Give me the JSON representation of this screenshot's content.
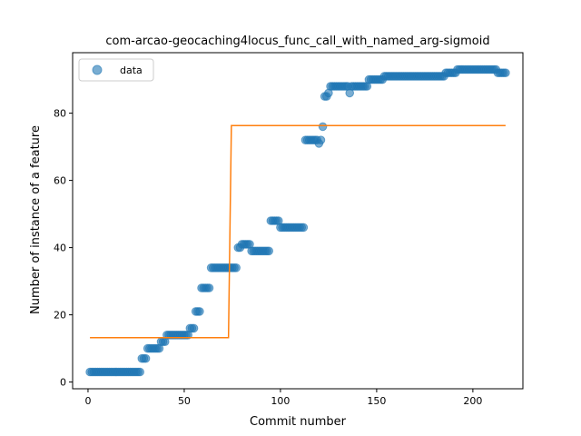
{
  "chart_data": {
    "type": "scatter",
    "title": "com-arcao-geocaching4locus_func_call_with_named_arg-sigmoid",
    "xlabel": "Commit number",
    "ylabel": "Number of instance of a feature",
    "xlim": [
      -8,
      226
    ],
    "ylim": [
      -2,
      98
    ],
    "xticks": [
      0,
      50,
      100,
      150,
      200
    ],
    "yticks": [
      0,
      20,
      40,
      60,
      80
    ],
    "grid": false,
    "legend": {
      "position": "top-left",
      "entries": [
        "data"
      ]
    },
    "colors": {
      "data": "#1f77b4",
      "fit": "#ff7f0e"
    },
    "series": [
      {
        "name": "data",
        "kind": "points",
        "points": [
          [
            1,
            3
          ],
          [
            2,
            3
          ],
          [
            3,
            3
          ],
          [
            4,
            3
          ],
          [
            5,
            3
          ],
          [
            6,
            3
          ],
          [
            7,
            3
          ],
          [
            8,
            3
          ],
          [
            9,
            3
          ],
          [
            10,
            3
          ],
          [
            11,
            3
          ],
          [
            12,
            3
          ],
          [
            13,
            3
          ],
          [
            14,
            3
          ],
          [
            15,
            3
          ],
          [
            16,
            3
          ],
          [
            17,
            3
          ],
          [
            18,
            3
          ],
          [
            19,
            3
          ],
          [
            20,
            3
          ],
          [
            21,
            3
          ],
          [
            22,
            3
          ],
          [
            23,
            3
          ],
          [
            24,
            3
          ],
          [
            25,
            3
          ],
          [
            26,
            3
          ],
          [
            27,
            3
          ],
          [
            28,
            7
          ],
          [
            29,
            7
          ],
          [
            30,
            7
          ],
          [
            31,
            10
          ],
          [
            32,
            10
          ],
          [
            33,
            10
          ],
          [
            34,
            10
          ],
          [
            35,
            10
          ],
          [
            36,
            10
          ],
          [
            37,
            10
          ],
          [
            38,
            12
          ],
          [
            39,
            12
          ],
          [
            40,
            12
          ],
          [
            41,
            14
          ],
          [
            42,
            14
          ],
          [
            43,
            14
          ],
          [
            44,
            14
          ],
          [
            45,
            14
          ],
          [
            46,
            14
          ],
          [
            47,
            14
          ],
          [
            48,
            14
          ],
          [
            49,
            14
          ],
          [
            50,
            14
          ],
          [
            51,
            14
          ],
          [
            52,
            14
          ],
          [
            53,
            16
          ],
          [
            54,
            16
          ],
          [
            55,
            16
          ],
          [
            56,
            21
          ],
          [
            57,
            21
          ],
          [
            58,
            21
          ],
          [
            59,
            28
          ],
          [
            60,
            28
          ],
          [
            61,
            28
          ],
          [
            62,
            28
          ],
          [
            63,
            28
          ],
          [
            64,
            34
          ],
          [
            65,
            34
          ],
          [
            66,
            34
          ],
          [
            67,
            34
          ],
          [
            68,
            34
          ],
          [
            69,
            34
          ],
          [
            70,
            34
          ],
          [
            71,
            34
          ],
          [
            72,
            34
          ],
          [
            73,
            34
          ],
          [
            74,
            34
          ],
          [
            75,
            34
          ],
          [
            76,
            34
          ],
          [
            77,
            34
          ],
          [
            78,
            40
          ],
          [
            79,
            40
          ],
          [
            80,
            41
          ],
          [
            81,
            41
          ],
          [
            82,
            41
          ],
          [
            83,
            41
          ],
          [
            84,
            41
          ],
          [
            85,
            39
          ],
          [
            86,
            39
          ],
          [
            87,
            39
          ],
          [
            88,
            39
          ],
          [
            89,
            39
          ],
          [
            90,
            39
          ],
          [
            91,
            39
          ],
          [
            92,
            39
          ],
          [
            93,
            39
          ],
          [
            94,
            39
          ],
          [
            95,
            48
          ],
          [
            96,
            48
          ],
          [
            97,
            48
          ],
          [
            98,
            48
          ],
          [
            99,
            48
          ],
          [
            100,
            46
          ],
          [
            101,
            46
          ],
          [
            102,
            46
          ],
          [
            103,
            46
          ],
          [
            104,
            46
          ],
          [
            105,
            46
          ],
          [
            106,
            46
          ],
          [
            107,
            46
          ],
          [
            108,
            46
          ],
          [
            109,
            46
          ],
          [
            110,
            46
          ],
          [
            111,
            46
          ],
          [
            112,
            46
          ],
          [
            113,
            72
          ],
          [
            114,
            72
          ],
          [
            115,
            72
          ],
          [
            116,
            72
          ],
          [
            117,
            72
          ],
          [
            118,
            72
          ],
          [
            119,
            72
          ],
          [
            120,
            71
          ],
          [
            121,
            72
          ],
          [
            122,
            76
          ],
          [
            123,
            85
          ],
          [
            124,
            85
          ],
          [
            125,
            86
          ],
          [
            126,
            88
          ],
          [
            127,
            88
          ],
          [
            128,
            88
          ],
          [
            129,
            88
          ],
          [
            130,
            88
          ],
          [
            131,
            88
          ],
          [
            132,
            88
          ],
          [
            133,
            88
          ],
          [
            134,
            88
          ],
          [
            135,
            88
          ],
          [
            136,
            86
          ],
          [
            137,
            88
          ],
          [
            138,
            88
          ],
          [
            139,
            88
          ],
          [
            140,
            88
          ],
          [
            141,
            88
          ],
          [
            142,
            88
          ],
          [
            143,
            88
          ],
          [
            144,
            88
          ],
          [
            145,
            88
          ],
          [
            146,
            90
          ],
          [
            147,
            90
          ],
          [
            148,
            90
          ],
          [
            149,
            90
          ],
          [
            150,
            90
          ],
          [
            151,
            90
          ],
          [
            152,
            90
          ],
          [
            153,
            90
          ],
          [
            154,
            91
          ],
          [
            155,
            91
          ],
          [
            156,
            91
          ],
          [
            157,
            91
          ],
          [
            158,
            91
          ],
          [
            159,
            91
          ],
          [
            160,
            91
          ],
          [
            161,
            91
          ],
          [
            162,
            91
          ],
          [
            163,
            91
          ],
          [
            164,
            91
          ],
          [
            165,
            91
          ],
          [
            166,
            91
          ],
          [
            167,
            91
          ],
          [
            168,
            91
          ],
          [
            169,
            91
          ],
          [
            170,
            91
          ],
          [
            171,
            91
          ],
          [
            172,
            91
          ],
          [
            173,
            91
          ],
          [
            174,
            91
          ],
          [
            175,
            91
          ],
          [
            176,
            91
          ],
          [
            177,
            91
          ],
          [
            178,
            91
          ],
          [
            179,
            91
          ],
          [
            180,
            91
          ],
          [
            181,
            91
          ],
          [
            182,
            91
          ],
          [
            183,
            91
          ],
          [
            184,
            91
          ],
          [
            185,
            91
          ],
          [
            186,
            92
          ],
          [
            187,
            92
          ],
          [
            188,
            92
          ],
          [
            189,
            92
          ],
          [
            190,
            92
          ],
          [
            191,
            92
          ],
          [
            192,
            93
          ],
          [
            193,
            93
          ],
          [
            194,
            93
          ],
          [
            195,
            93
          ],
          [
            196,
            93
          ],
          [
            197,
            93
          ],
          [
            198,
            93
          ],
          [
            199,
            93
          ],
          [
            200,
            93
          ],
          [
            201,
            93
          ],
          [
            202,
            93
          ],
          [
            203,
            93
          ],
          [
            204,
            93
          ],
          [
            205,
            93
          ],
          [
            206,
            93
          ],
          [
            207,
            93
          ],
          [
            208,
            93
          ],
          [
            209,
            93
          ],
          [
            210,
            93
          ],
          [
            211,
            93
          ],
          [
            212,
            93
          ],
          [
            213,
            92
          ],
          [
            214,
            92
          ],
          [
            215,
            92
          ],
          [
            216,
            92
          ],
          [
            217,
            92
          ]
        ]
      },
      {
        "kind": "line",
        "points": [
          [
            1,
            13.2
          ],
          [
            73,
            13.2
          ],
          [
            74.5,
            76.3
          ],
          [
            217,
            76.3
          ]
        ]
      }
    ]
  }
}
